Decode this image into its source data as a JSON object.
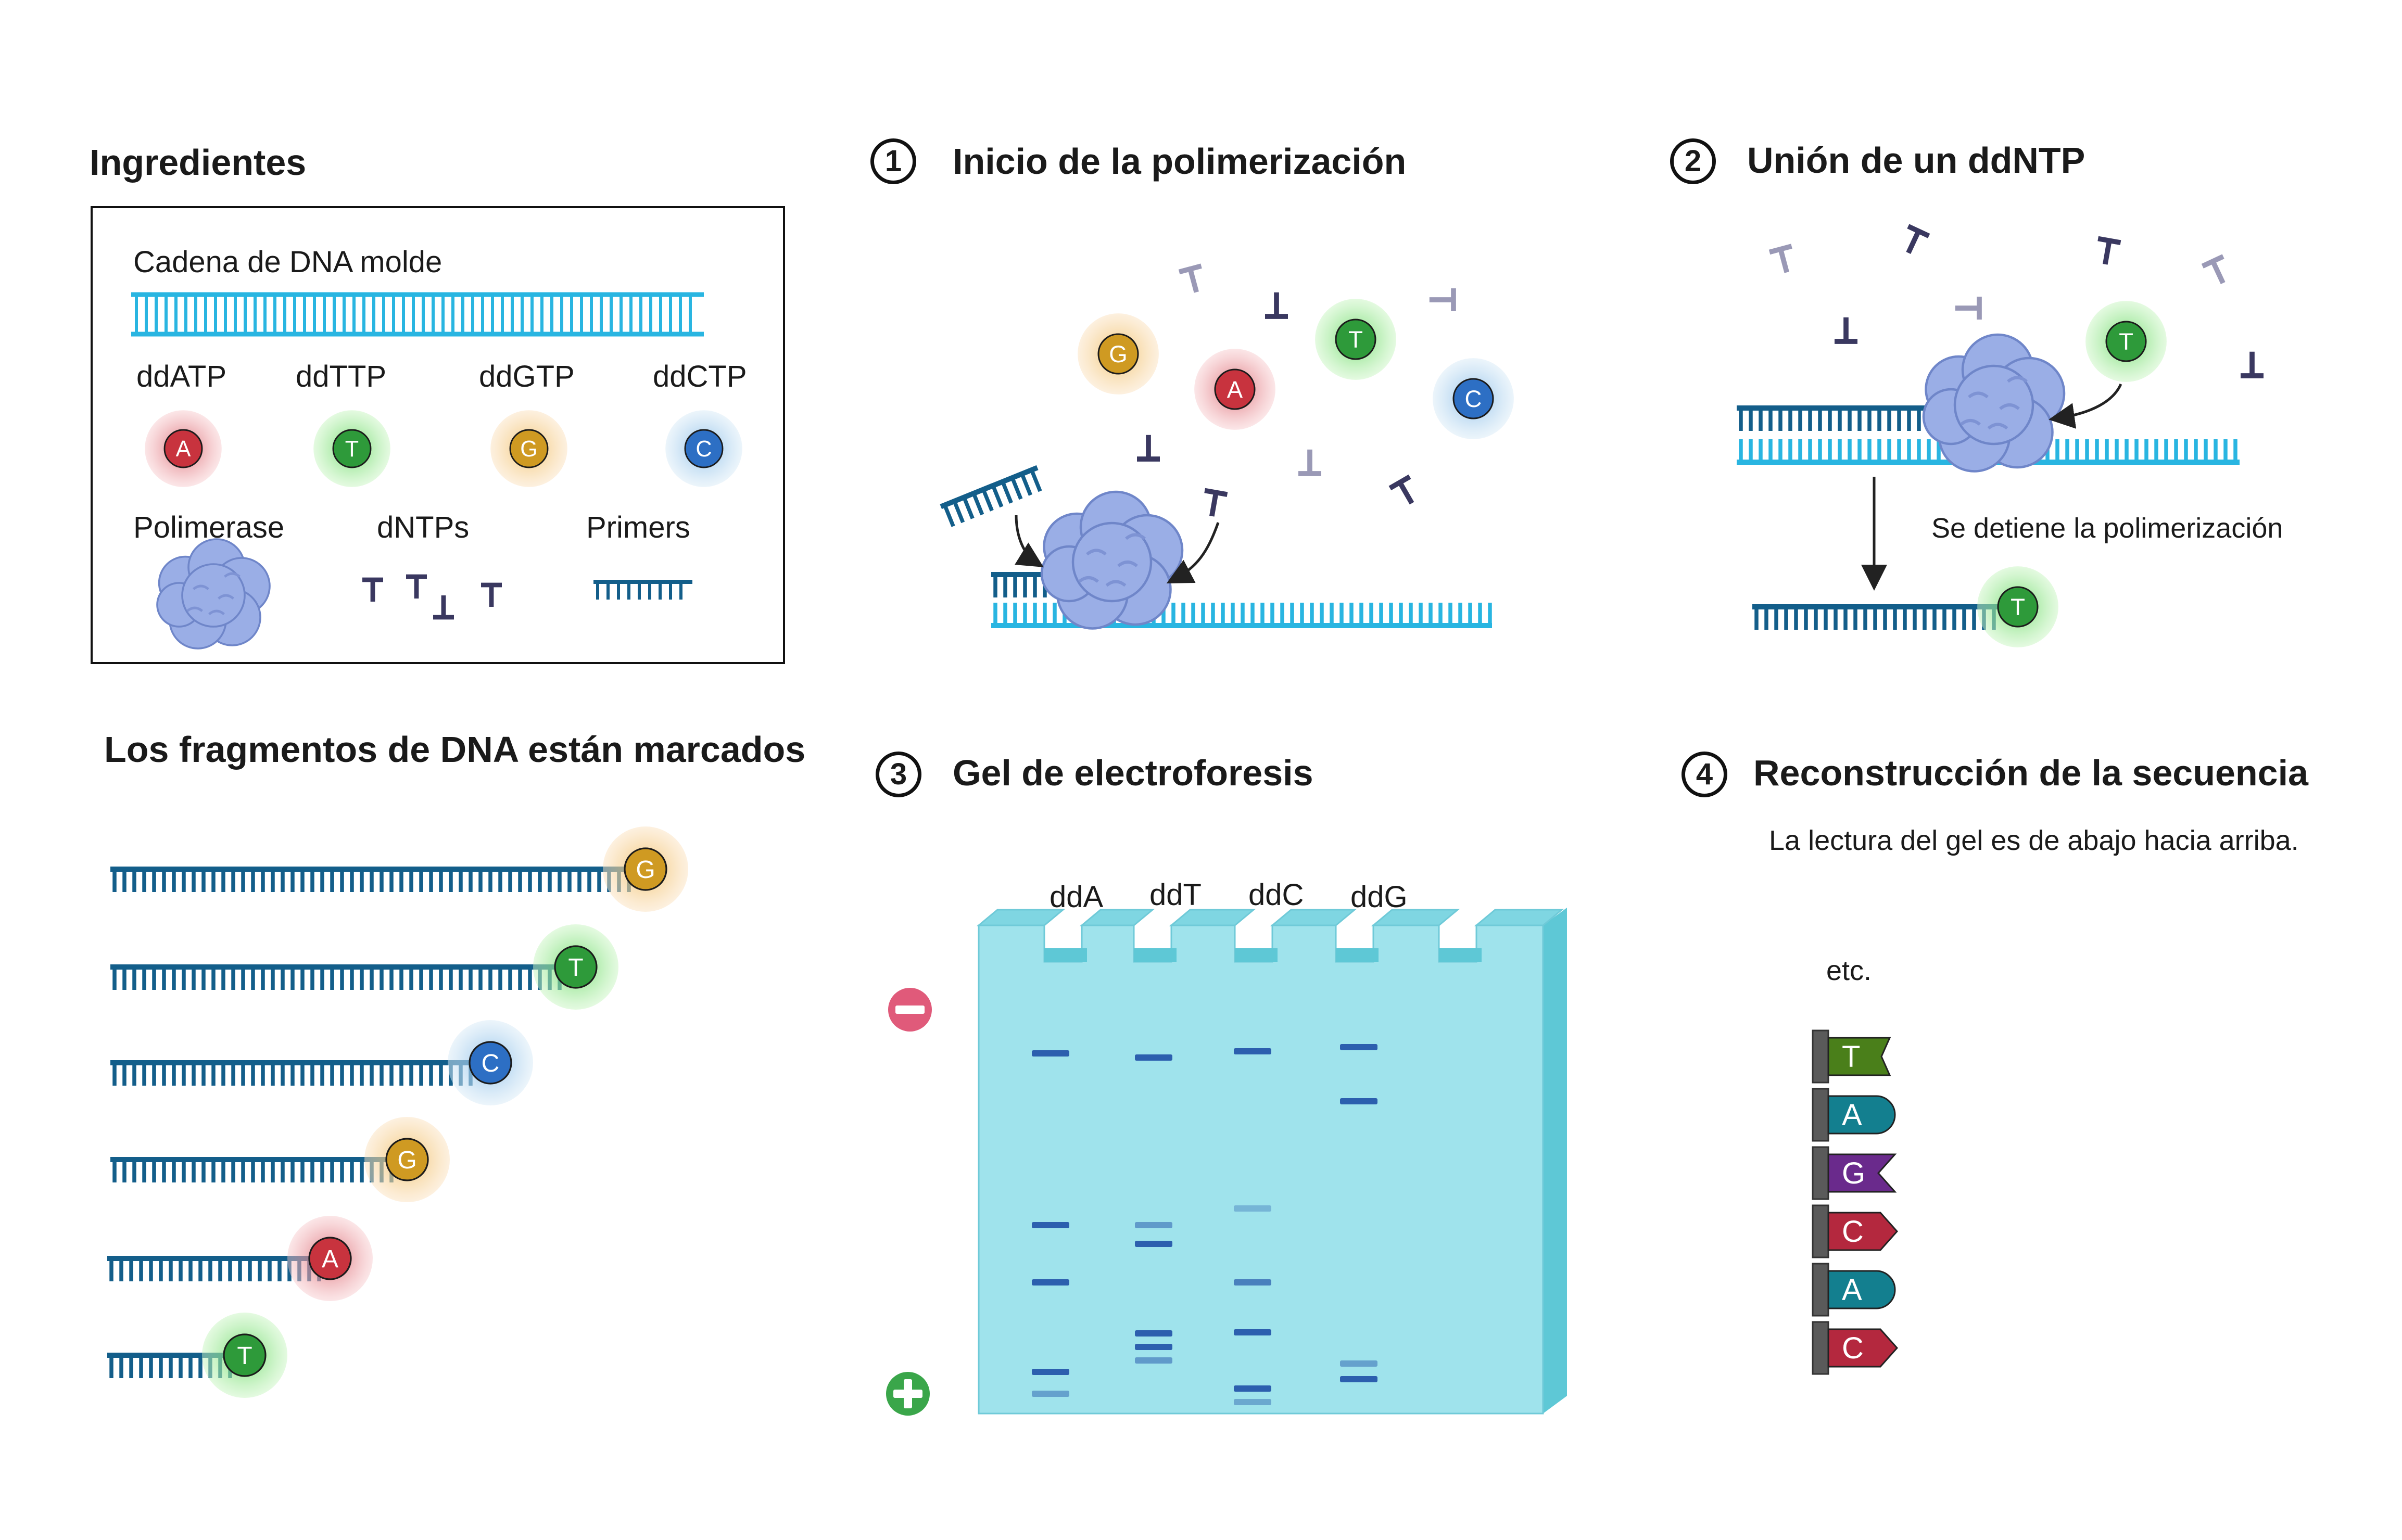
{
  "colors": {
    "template": "#29b5e1",
    "primer": "#135e8a",
    "A": "#c8333e",
    "T": "#2e9a3a",
    "G": "#cf9a22",
    "C": "#2d6fc4",
    "gel": "#9fe3ec",
    "band": "#2c5fae",
    "minus": "#e05a7a",
    "plus": "#3aa64a",
    "polymerase": "#9aaee6",
    "dntp_dark": "#3a3860",
    "dntp_light": "#9a99b6"
  },
  "ingredients": {
    "title": "Ingredientes",
    "template_label": "Cadena de DNA molde",
    "dd": [
      {
        "label": "ddATP",
        "base": "A"
      },
      {
        "label": "ddTTP",
        "base": "T"
      },
      {
        "label": "ddGTP",
        "base": "G"
      },
      {
        "label": "ddCTP",
        "base": "C"
      }
    ],
    "polymerase_label": "Polimerase",
    "dntps_label": "dNTPs",
    "primers_label": "Primers"
  },
  "step1": {
    "num": "1",
    "title": "Inicio de la polimerización",
    "bases": [
      "G",
      "A",
      "T",
      "C"
    ]
  },
  "step2": {
    "num": "2",
    "title": "Unión de un ddNTP",
    "stop_label": "Se detiene la polimerización",
    "base": "T"
  },
  "fragments": {
    "title": "Los fragmentos de DNA están marcados",
    "bases": [
      "G",
      "T",
      "C",
      "G",
      "A",
      "T"
    ]
  },
  "step3": {
    "num": "3",
    "title": "Gel de electroforesis",
    "lanes": [
      "ddA",
      "ddT",
      "ddC",
      "ddG"
    ]
  },
  "step4": {
    "num": "4",
    "title": "Reconstrucción de la secuencia",
    "subtitle": "La lectura del gel es de abajo hacia arriba.",
    "etc_label": "etc.",
    "sequence": [
      "T",
      "A",
      "G",
      "C",
      "A",
      "C"
    ]
  }
}
